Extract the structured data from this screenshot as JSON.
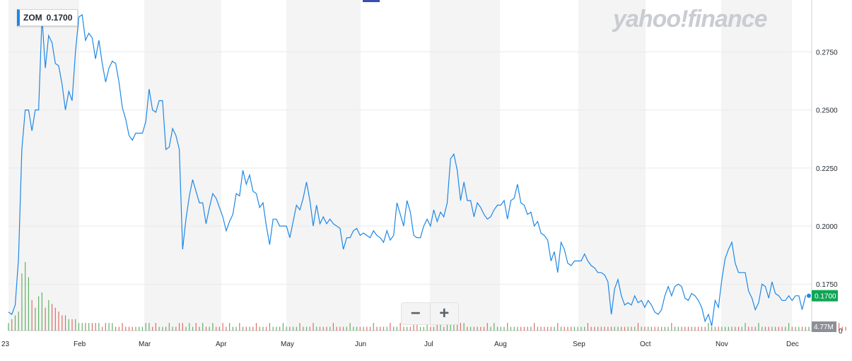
{
  "legend": {
    "symbol": "ZOM",
    "value": "0.1700"
  },
  "watermark": "yahoo!finance",
  "zoom": {
    "minus": "−",
    "plus": "+"
  },
  "colors": {
    "line": "#1e88e5",
    "band": "#f4f4f4",
    "vol_up": "#46a34a",
    "vol_down": "#d9534f",
    "last_badge": "#10a554",
    "vol_badge": "#8c9096"
  },
  "chart_data": {
    "type": "line",
    "ylim": [
      0.155,
      0.2955
    ],
    "yticks": [
      "0.1750",
      "0.2000",
      "0.2250",
      "0.2500",
      "0.2750"
    ],
    "x_labels": [
      "23",
      "Feb",
      "Mar",
      "Apr",
      "May",
      "Jun",
      "Jul",
      "Aug",
      "Sep",
      "Oct",
      "Nov",
      "Dec"
    ],
    "last_value": "0.1700",
    "volume_label": "4.77M",
    "volume_zero_label": "0",
    "series": [
      {
        "values": [
          0.163,
          0.162,
          0.166,
          0.186,
          0.233,
          0.25,
          0.25,
          0.241,
          0.25,
          0.25,
          0.29,
          0.268,
          0.282,
          0.279,
          0.27,
          0.269,
          0.261,
          0.25,
          0.258,
          0.254,
          0.275,
          0.29,
          0.291,
          0.28,
          0.283,
          0.281,
          0.272,
          0.28,
          0.27,
          0.262,
          0.268,
          0.271,
          0.27,
          0.262,
          0.251,
          0.246,
          0.239,
          0.237,
          0.24,
          0.24,
          0.24,
          0.245,
          0.259,
          0.25,
          0.249,
          0.254,
          0.254,
          0.233,
          0.234,
          0.242,
          0.239,
          0.233,
          0.19,
          0.203,
          0.213,
          0.22,
          0.215,
          0.21,
          0.21,
          0.201,
          0.208,
          0.214,
          0.212,
          0.208,
          0.204,
          0.198,
          0.202,
          0.205,
          0.214,
          0.213,
          0.224,
          0.218,
          0.222,
          0.215,
          0.214,
          0.208,
          0.21,
          0.2,
          0.192,
          0.203,
          0.203,
          0.2,
          0.2,
          0.2,
          0.195,
          0.202,
          0.209,
          0.207,
          0.212,
          0.219,
          0.211,
          0.2,
          0.209,
          0.201,
          0.204,
          0.201,
          0.203,
          0.201,
          0.2,
          0.199,
          0.19,
          0.195,
          0.195,
          0.198,
          0.199,
          0.196,
          0.197,
          0.196,
          0.195,
          0.198,
          0.196,
          0.195,
          0.193,
          0.198,
          0.194,
          0.196,
          0.21,
          0.205,
          0.2,
          0.211,
          0.206,
          0.196,
          0.195,
          0.195,
          0.2,
          0.203,
          0.2,
          0.207,
          0.202,
          0.206,
          0.204,
          0.21,
          0.229,
          0.231,
          0.224,
          0.211,
          0.219,
          0.211,
          0.211,
          0.204,
          0.21,
          0.208,
          0.205,
          0.203,
          0.204,
          0.207,
          0.209,
          0.209,
          0.211,
          0.203,
          0.211,
          0.212,
          0.218,
          0.21,
          0.209,
          0.205,
          0.206,
          0.2,
          0.202,
          0.197,
          0.196,
          0.194,
          0.185,
          0.189,
          0.18,
          0.193,
          0.19,
          0.184,
          0.183,
          0.185,
          0.185,
          0.185,
          0.188,
          0.185,
          0.183,
          0.182,
          0.18,
          0.18,
          0.179,
          0.176,
          0.162,
          0.173,
          0.177,
          0.17,
          0.166,
          0.167,
          0.166,
          0.17,
          0.167,
          0.168,
          0.165,
          0.168,
          0.166,
          0.163,
          0.162,
          0.164,
          0.17,
          0.174,
          0.17,
          0.174,
          0.175,
          0.174,
          0.169,
          0.168,
          0.171,
          0.17,
          0.168,
          0.165,
          0.159,
          0.162,
          0.157,
          0.168,
          0.165,
          0.177,
          0.186,
          0.19,
          0.193,
          0.184,
          0.18,
          0.18,
          0.18,
          0.172,
          0.169,
          0.164,
          0.167,
          0.175,
          0.174,
          0.169,
          0.176,
          0.171,
          0.17,
          0.168,
          0.168,
          0.17,
          0.168,
          0.17,
          0.17,
          0.164,
          0.17,
          0.17
        ]
      },
      {
        "name": "Volume",
        "values": [
          2,
          3,
          4,
          5,
          15,
          18,
          14,
          8,
          6,
          9,
          10,
          6,
          8,
          7,
          6,
          5,
          4,
          4,
          3,
          3,
          3,
          2,
          2,
          2,
          2,
          2,
          2,
          2,
          1,
          2,
          2,
          2,
          1,
          1,
          2,
          1,
          1,
          1,
          1,
          1,
          1,
          2,
          2,
          1,
          2,
          1,
          1,
          1,
          2,
          1,
          1,
          2,
          2,
          1,
          2,
          1,
          2,
          1,
          2,
          1,
          1,
          2,
          1,
          1,
          2,
          1,
          2,
          1,
          1,
          2,
          1,
          1,
          1,
          1,
          2,
          1,
          1,
          1,
          2,
          1,
          1,
          1,
          2,
          1,
          1,
          1,
          1,
          2,
          1,
          1,
          1,
          2,
          1,
          1,
          1,
          1,
          1,
          2,
          1,
          1,
          1,
          1,
          2,
          1,
          1,
          1,
          1,
          1,
          1,
          2,
          1,
          1,
          1,
          1,
          2,
          1,
          1,
          2,
          1,
          1,
          1,
          2,
          2,
          1,
          1,
          2,
          1,
          1,
          2,
          2,
          1,
          2,
          2,
          2,
          2,
          2,
          2,
          1,
          1,
          1,
          1,
          1,
          1,
          2,
          1,
          2,
          1,
          1,
          1,
          2,
          1,
          1,
          1,
          1,
          1,
          1,
          1,
          2,
          1,
          1,
          1,
          1,
          1,
          1,
          2,
          1,
          1,
          1,
          1,
          1,
          1,
          1,
          1,
          2,
          1,
          1,
          1,
          1,
          1,
          1,
          1,
          1,
          1,
          1,
          1,
          1,
          1,
          1,
          2,
          1,
          1,
          1,
          1,
          1,
          1,
          1,
          1,
          1,
          2,
          1,
          1,
          1,
          1,
          1,
          1,
          1,
          1,
          1,
          1,
          2,
          1,
          1,
          1,
          1,
          1,
          1,
          1,
          1,
          1,
          1,
          2,
          1,
          1,
          1,
          2,
          1,
          1,
          1,
          1,
          1,
          1,
          1,
          1,
          2,
          1,
          1,
          1,
          1,
          1,
          1,
          1,
          1,
          1,
          1,
          1,
          1,
          1,
          1,
          2,
          1,
          1
        ]
      }
    ]
  }
}
